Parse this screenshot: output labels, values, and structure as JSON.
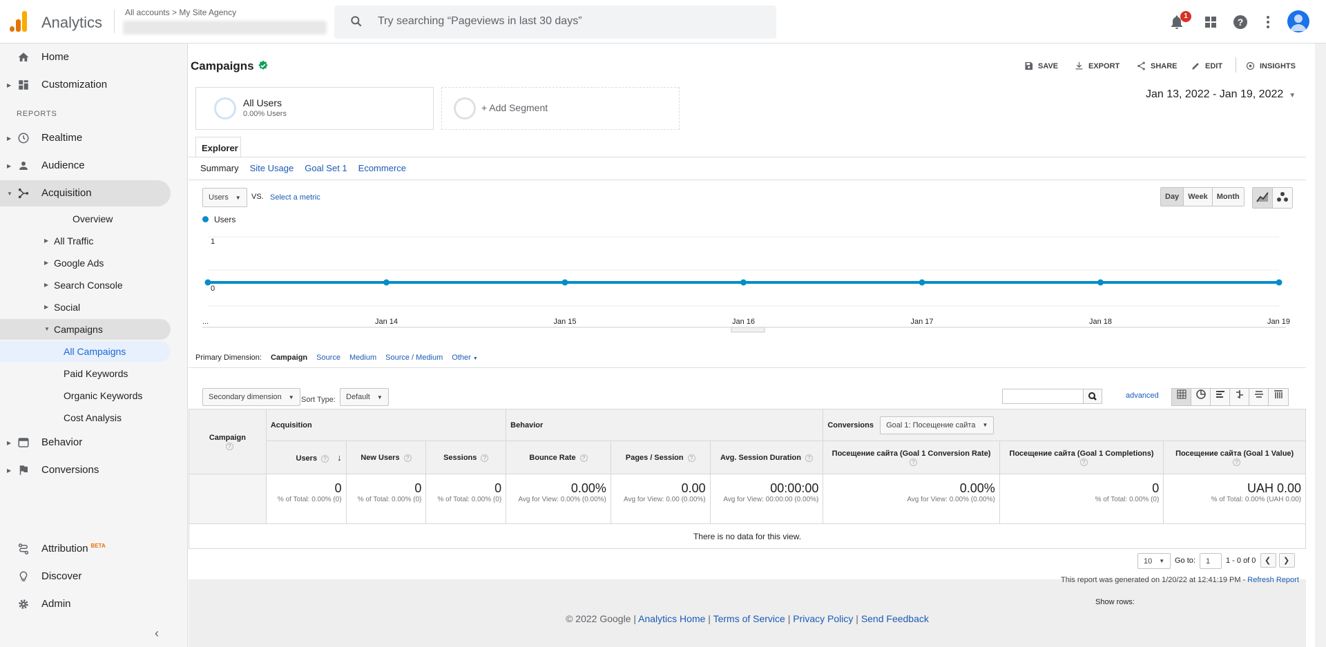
{
  "app": {
    "name": "Analytics",
    "breadcrumb": "All accounts > My Site Agency"
  },
  "search": {
    "placeholder": "Try searching “Pageviews in last 30 days”"
  },
  "topbar": {
    "notification_count": "1"
  },
  "sidebar": {
    "home": "Home",
    "customization": "Customization",
    "reports_heading": "REPORTS",
    "realtime": "Realtime",
    "audience": "Audience",
    "acquisition": "Acquisition",
    "acq_items": {
      "overview": "Overview",
      "all_traffic": "All Traffic",
      "google_ads": "Google Ads",
      "search_console": "Search Console",
      "social": "Social",
      "campaigns": "Campaigns"
    },
    "camp_items": {
      "all_campaigns": "All Campaigns",
      "paid_keywords": "Paid Keywords",
      "organic_keywords": "Organic Keywords",
      "cost_analysis": "Cost Analysis"
    },
    "behavior": "Behavior",
    "conversions": "Conversions",
    "attribution": "Attribution",
    "beta": "BETA",
    "discover": "Discover",
    "admin": "Admin"
  },
  "page": {
    "title": "Campaigns",
    "actions": {
      "save": "SAVE",
      "export": "EXPORT",
      "share": "SHARE",
      "edit": "EDIT",
      "insights": "INSIGHTS"
    },
    "date_range": "Jan 13, 2022 - Jan 19, 2022"
  },
  "segments": {
    "all_users": "All Users",
    "all_users_pct": "0.00% Users",
    "add": "+ Add Segment"
  },
  "explorer": {
    "tab": "Explorer",
    "subtabs": {
      "summary": "Summary",
      "site_usage": "Site Usage",
      "goal_set": "Goal Set 1",
      "ecommerce": "Ecommerce"
    }
  },
  "chart_controls": {
    "metric": "Users",
    "vs": "VS.",
    "select_metric": "Select a metric",
    "day": "Day",
    "week": "Week",
    "month": "Month"
  },
  "chart_data": {
    "type": "line",
    "series": [
      {
        "name": "Users",
        "values": [
          0,
          0,
          0,
          0,
          0,
          0,
          0
        ]
      }
    ],
    "x": [
      "Jan 13",
      "Jan 14",
      "Jan 15",
      "Jan 16",
      "Jan 17",
      "Jan 18",
      "Jan 19"
    ],
    "x_tick_labels": [
      "...",
      "Jan 14",
      "Jan 15",
      "Jan 16",
      "Jan 17",
      "Jan 18",
      "Jan 19"
    ],
    "y_tick_labels": [
      "1",
      "0"
    ],
    "ylim": [
      0,
      1
    ],
    "color": "#058dc7",
    "grid": true,
    "legend": "top-left"
  },
  "table": {
    "primary_dimension_label": "Primary Dimension:",
    "dimensions": {
      "campaign": "Campaign",
      "source": "Source",
      "medium": "Medium",
      "source_medium": "Source / Medium",
      "other": "Other"
    },
    "secondary_dimension": "Secondary dimension",
    "sort_type_label": "Sort Type:",
    "sort_type": "Default",
    "advanced": "advanced",
    "groups": {
      "acquisition": "Acquisition",
      "behavior": "Behavior",
      "conversions": "Conversions",
      "goal_select": "Goal 1: Посещение сайта"
    },
    "headers": {
      "campaign": "Campaign",
      "users": "Users",
      "new_users": "New Users",
      "sessions": "Sessions",
      "bounce_rate": "Bounce Rate",
      "pages_session": "Pages / Session",
      "avg_duration": "Avg. Session Duration",
      "conv_rate": "Посещение сайта (Goal 1 Conversion Rate)",
      "completions": "Посещение сайта (Goal 1 Completions)",
      "value": "Посещение сайта (Goal 1 Value)"
    },
    "totals": {
      "users": {
        "v": "0",
        "s": "% of Total: 0.00% (0)"
      },
      "new_users": {
        "v": "0",
        "s": "% of Total: 0.00% (0)"
      },
      "sessions": {
        "v": "0",
        "s": "% of Total: 0.00% (0)"
      },
      "bounce_rate": {
        "v": "0.00%",
        "s": "Avg for View: 0.00% (0.00%)"
      },
      "pages_session": {
        "v": "0.00",
        "s": "Avg for View: 0.00 (0.00%)"
      },
      "avg_duration": {
        "v": "00:00:00",
        "s": "Avg for View: 00:00:00 (0.00%)"
      },
      "conv_rate": {
        "v": "0.00%",
        "s": "Avg for View: 0.00% (0.00%)"
      },
      "completions": {
        "v": "0",
        "s": "% of Total: 0.00% (0)"
      },
      "value": {
        "v": "UAH 0.00",
        "s": "% of Total: 0.00% (UAH 0.00)"
      }
    },
    "no_data": "There is no data for this view.",
    "show_rows_label": "Show rows:",
    "show_rows": "10",
    "goto_label": "Go to:",
    "goto_value": "1",
    "range": "1 - 0 of 0",
    "generated": "This report was generated on 1/20/22 at 12:41:19 PM -",
    "refresh": "Refresh Report"
  },
  "footer": {
    "copyright": "© 2022 Google |",
    "analytics_home": "Analytics Home",
    "terms": "Terms of Service",
    "privacy": "Privacy Policy",
    "feedback": "Send Feedback",
    "sep": " | "
  }
}
